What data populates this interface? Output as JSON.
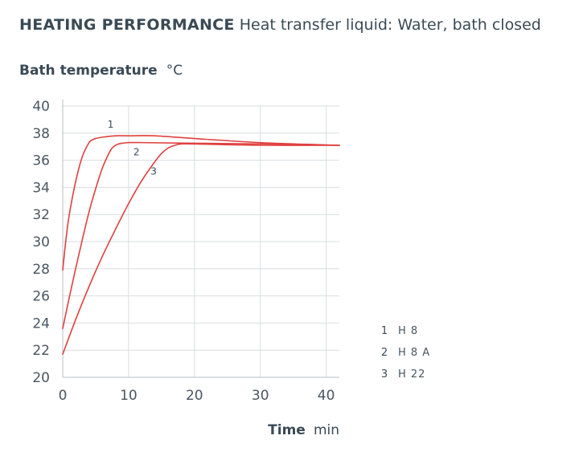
{
  "header": {
    "title": "HEATING PERFORMANCE",
    "subtitle": "Heat transfer liquid: Water, bath closed"
  },
  "chart_data": {
    "type": "line",
    "ylabel": "Bath temperature",
    "yunit": "°C",
    "xlabel": "Time",
    "xunit": "min",
    "xlim": [
      0,
      42
    ],
    "ylim": [
      20,
      40
    ],
    "xticks": [
      0,
      10,
      20,
      30,
      40
    ],
    "yticks": [
      20,
      22,
      24,
      26,
      28,
      30,
      32,
      34,
      36,
      38,
      40
    ],
    "grid": true,
    "legend_position": "right",
    "line_color": "#e04040",
    "series": [
      {
        "label": "1",
        "name": "H 8",
        "x": [
          0,
          0.5,
          1,
          2,
          3,
          4,
          4.5,
          5,
          6,
          8,
          10,
          14,
          20,
          30,
          42
        ],
        "y": [
          27.9,
          30.2,
          32.0,
          34.5,
          36.3,
          37.3,
          37.5,
          37.6,
          37.7,
          37.8,
          37.8,
          37.8,
          37.6,
          37.3,
          37.1
        ]
      },
      {
        "label": "2",
        "name": "H 8 A",
        "x": [
          0,
          1,
          2,
          3,
          4,
          5,
          6,
          7,
          7.5,
          8,
          8.5,
          9,
          10,
          12,
          20,
          30,
          42
        ],
        "y": [
          23.6,
          25.9,
          28.1,
          30.2,
          32.2,
          33.9,
          35.4,
          36.5,
          36.9,
          37.1,
          37.2,
          37.25,
          37.3,
          37.3,
          37.25,
          37.2,
          37.1
        ]
      },
      {
        "label": "3",
        "name": "H 22",
        "x": [
          0,
          2,
          4,
          6,
          8,
          10,
          12,
          14,
          15,
          16,
          17,
          18,
          20,
          30,
          42
        ],
        "y": [
          21.7,
          24.3,
          26.7,
          28.9,
          30.9,
          32.8,
          34.5,
          35.9,
          36.5,
          36.9,
          37.1,
          37.2,
          37.2,
          37.1,
          37.1
        ]
      }
    ]
  }
}
